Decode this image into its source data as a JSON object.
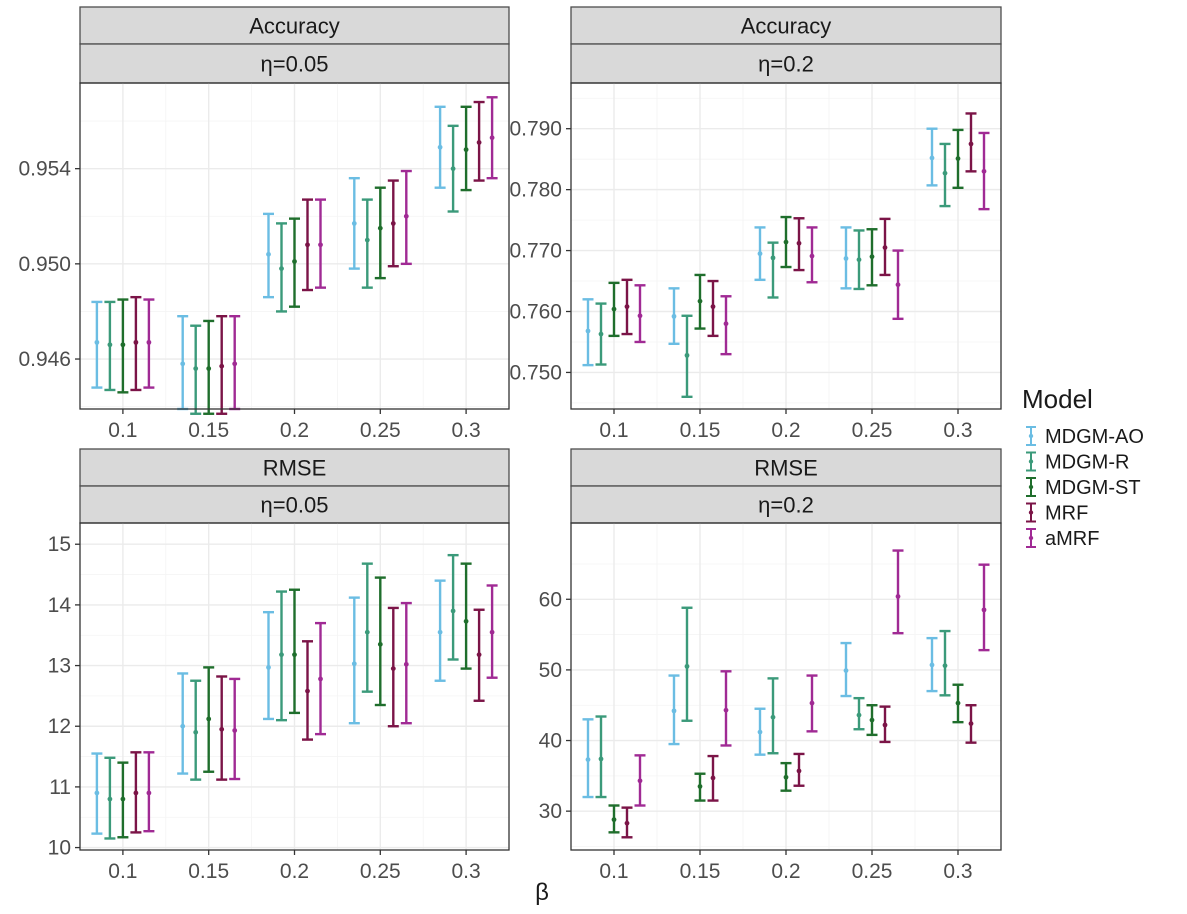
{
  "chart_data": {
    "type": "errorbar",
    "xlabel": "β",
    "legend": {
      "title": "Model",
      "placement": "right",
      "entries": [
        "MDGM-AO",
        "MDGM-R",
        "MDGM-ST",
        "MRF",
        "aMRF"
      ]
    },
    "series_colors": {
      "MDGM-AO": "#6bbde3",
      "MDGM-R": "#3b9a7a",
      "MDGM-ST": "#1f6e2c",
      "MRF": "#7b1447",
      "aMRF": "#a02a94"
    },
    "categories": [
      "0.1",
      "0.15",
      "0.2",
      "0.25",
      "0.3"
    ],
    "panels": [
      {
        "metric": "Accuracy",
        "eta": "η=0.05",
        "ylim": [
          0.9439,
          0.9576
        ],
        "yticks": [
          0.946,
          0.95,
          0.954
        ],
        "ytick_labels": [
          "0.946",
          "0.950",
          "0.954"
        ],
        "grid": true,
        "series": [
          {
            "name": "MDGM-AO",
            "mean": [
              0.9467,
              0.9458,
              0.9504,
              0.9517,
              0.9549
            ],
            "low": [
              0.9448,
              0.9439,
              0.9486,
              0.9498,
              0.9532
            ],
            "high": [
              0.9484,
              0.9478,
              0.9521,
              0.9536,
              0.9566
            ]
          },
          {
            "name": "MDGM-R",
            "mean": [
              0.9466,
              0.9456,
              0.9498,
              0.951,
              0.954
            ],
            "low": [
              0.9447,
              0.9437,
              0.948,
              0.949,
              0.9522
            ],
            "high": [
              0.9484,
              0.9474,
              0.9517,
              0.9527,
              0.9558
            ]
          },
          {
            "name": "MDGM-ST",
            "mean": [
              0.9466,
              0.9456,
              0.9501,
              0.9515,
              0.9548
            ],
            "low": [
              0.9446,
              0.9437,
              0.9482,
              0.9494,
              0.9531
            ],
            "high": [
              0.9485,
              0.9476,
              0.9519,
              0.9532,
              0.9566
            ]
          },
          {
            "name": "MRF",
            "mean": [
              0.9467,
              0.9457,
              0.9508,
              0.9517,
              0.9551
            ],
            "low": [
              0.9447,
              0.9437,
              0.9489,
              0.9499,
              0.9535
            ],
            "high": [
              0.9486,
              0.9478,
              0.9527,
              0.9535,
              0.9568
            ]
          },
          {
            "name": "aMRF",
            "mean": [
              0.9467,
              0.9458,
              0.9508,
              0.952,
              0.9553
            ],
            "low": [
              0.9448,
              0.9439,
              0.949,
              0.95,
              0.9536
            ],
            "high": [
              0.9485,
              0.9478,
              0.9527,
              0.9539,
              0.957
            ]
          }
        ]
      },
      {
        "metric": "Accuracy",
        "eta": "η=0.2",
        "ylim": [
          0.744,
          0.7975
        ],
        "yticks": [
          0.75,
          0.76,
          0.77,
          0.78,
          0.79
        ],
        "ytick_labels": [
          "0.750",
          "0.760",
          "0.770",
          "0.780",
          "0.790"
        ],
        "grid": true,
        "series": [
          {
            "name": "MDGM-AO",
            "mean": [
              0.7568,
              0.7592,
              0.7695,
              0.7687,
              0.7852
            ],
            "low": [
              0.7512,
              0.7547,
              0.7652,
              0.7638,
              0.7807
            ],
            "high": [
              0.762,
              0.7638,
              0.7738,
              0.7738,
              0.79
            ]
          },
          {
            "name": "MDGM-R",
            "mean": [
              0.7563,
              0.7528,
              0.7688,
              0.7685,
              0.7827
            ],
            "low": [
              0.7513,
              0.746,
              0.7623,
              0.7637,
              0.7773
            ],
            "high": [
              0.7613,
              0.7593,
              0.7713,
              0.7733,
              0.7875
            ]
          },
          {
            "name": "MDGM-ST",
            "mean": [
              0.7604,
              0.7617,
              0.7714,
              0.769,
              0.7851
            ],
            "low": [
              0.756,
              0.7572,
              0.7673,
              0.7643,
              0.7803
            ],
            "high": [
              0.7647,
              0.766,
              0.7755,
              0.7735,
              0.7898
            ]
          },
          {
            "name": "MRF",
            "mean": [
              0.7608,
              0.7608,
              0.7712,
              0.7705,
              0.7875
            ],
            "low": [
              0.7563,
              0.756,
              0.7668,
              0.766,
              0.783
            ],
            "high": [
              0.7652,
              0.765,
              0.7753,
              0.7752,
              0.7925
            ]
          },
          {
            "name": "aMRF",
            "mean": [
              0.7593,
              0.758,
              0.7691,
              0.7644,
              0.783
            ],
            "low": [
              0.755,
              0.753,
              0.7648,
              0.7588,
              0.7768
            ],
            "high": [
              0.7643,
              0.7625,
              0.7738,
              0.77,
              0.7893
            ]
          }
        ]
      },
      {
        "metric": "RMSE",
        "eta": "η=0.05",
        "ylim": [
          9.96,
          15.35
        ],
        "yticks": [
          10,
          11,
          12,
          13,
          14,
          15
        ],
        "ytick_labels": [
          "10",
          "11",
          "12",
          "13",
          "14",
          "15"
        ],
        "grid": true,
        "series": [
          {
            "name": "MDGM-AO",
            "mean": [
              10.9,
              12.0,
              12.97,
              13.03,
              13.55
            ],
            "low": [
              10.23,
              11.22,
              12.12,
              12.05,
              12.75
            ],
            "high": [
              11.55,
              12.87,
              13.88,
              14.12,
              14.4
            ]
          },
          {
            "name": "MDGM-R",
            "mean": [
              10.8,
              11.9,
              13.18,
              13.55,
              13.9
            ],
            "low": [
              10.15,
              11.12,
              12.1,
              12.57,
              13.1
            ],
            "high": [
              11.48,
              12.75,
              14.22,
              14.68,
              14.82
            ]
          },
          {
            "name": "MDGM-ST",
            "mean": [
              10.8,
              12.12,
              13.18,
              13.35,
              13.73
            ],
            "low": [
              10.17,
              11.25,
              12.22,
              12.35,
              12.95
            ],
            "high": [
              11.4,
              12.97,
              14.25,
              14.45,
              14.68
            ]
          },
          {
            "name": "MRF",
            "mean": [
              10.9,
              11.95,
              12.58,
              12.95,
              13.18
            ],
            "low": [
              10.25,
              11.12,
              11.78,
              12.0,
              12.42
            ],
            "high": [
              11.57,
              12.82,
              13.4,
              13.95,
              13.92
            ]
          },
          {
            "name": "aMRF",
            "mean": [
              10.9,
              11.93,
              12.78,
              13.02,
              13.55
            ],
            "low": [
              10.27,
              11.13,
              11.87,
              12.05,
              12.8
            ],
            "high": [
              11.57,
              12.78,
              13.7,
              14.03,
              14.32
            ]
          }
        ]
      },
      {
        "metric": "RMSE",
        "eta": "η=0.2",
        "ylim": [
          24.5,
          70.8
        ],
        "yticks": [
          30,
          40,
          50,
          60
        ],
        "ytick_labels": [
          "30",
          "40",
          "50",
          "60"
        ],
        "grid": true,
        "series": [
          {
            "name": "MDGM-AO",
            "mean": [
              37.3,
              44.2,
              41.2,
              49.9,
              50.7
            ],
            "low": [
              32.0,
              39.5,
              38.0,
              46.3,
              47.0
            ],
            "high": [
              43.0,
              49.2,
              44.5,
              53.8,
              54.5
            ]
          },
          {
            "name": "MDGM-R",
            "mean": [
              37.4,
              50.5,
              43.3,
              43.6,
              50.6
            ],
            "low": [
              32.0,
              42.8,
              38.2,
              41.6,
              46.4
            ],
            "high": [
              43.4,
              58.8,
              48.8,
              46.0,
              55.5
            ]
          },
          {
            "name": "MDGM-ST",
            "mean": [
              28.8,
              33.5,
              34.8,
              42.9,
              45.3
            ],
            "low": [
              27.0,
              31.5,
              32.9,
              40.8,
              42.6
            ],
            "high": [
              30.8,
              35.3,
              36.8,
              45.0,
              47.9
            ]
          },
          {
            "name": "MRF",
            "mean": [
              28.3,
              34.7,
              35.7,
              42.2,
              42.4
            ],
            "low": [
              26.3,
              31.5,
              33.6,
              39.8,
              39.7
            ],
            "high": [
              30.5,
              37.8,
              38.1,
              44.8,
              45.0
            ]
          },
          {
            "name": "aMRF",
            "mean": [
              34.3,
              44.3,
              45.3,
              60.4,
              58.5
            ],
            "low": [
              30.8,
              39.3,
              41.3,
              55.2,
              52.8
            ],
            "high": [
              37.9,
              49.8,
              49.2,
              66.9,
              64.9
            ]
          }
        ]
      }
    ]
  }
}
